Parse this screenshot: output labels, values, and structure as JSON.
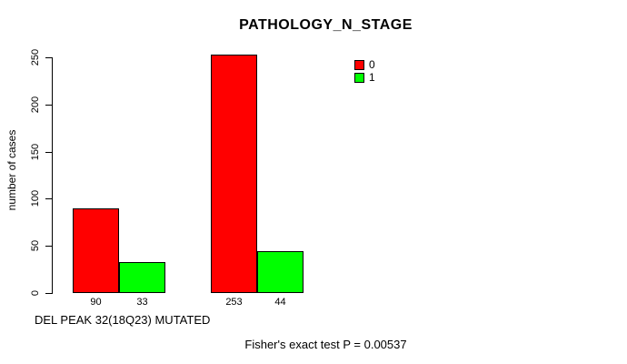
{
  "chart_data": {
    "type": "bar",
    "title": "PATHOLOGY_N_STAGE",
    "ylabel": "number of cases",
    "xlabel": "DEL PEAK 32(18Q23) MUTATED",
    "footer": "Fisher's exact test P = 0.00537",
    "ylim": [
      0,
      250
    ],
    "yticks": [
      0,
      50,
      100,
      150,
      200,
      250
    ],
    "grid": false,
    "legend_position": "top-right",
    "series_colors": {
      "0": "#FF0000",
      "1": "#00FF00"
    },
    "groups": [
      {
        "bars": [
          {
            "series": "0",
            "value": 90,
            "label": "90",
            "color": "#FF0000"
          },
          {
            "series": "1",
            "value": 33,
            "label": "33",
            "color": "#00FF00"
          }
        ]
      },
      {
        "bars": [
          {
            "series": "0",
            "value": 253,
            "label": "253",
            "color": "#FF0000"
          },
          {
            "series": "1",
            "value": 44,
            "label": "44",
            "color": "#00FF00"
          }
        ]
      }
    ],
    "legend": [
      {
        "label": "0",
        "color": "#FF0000"
      },
      {
        "label": "1",
        "color": "#00FF00"
      }
    ]
  }
}
